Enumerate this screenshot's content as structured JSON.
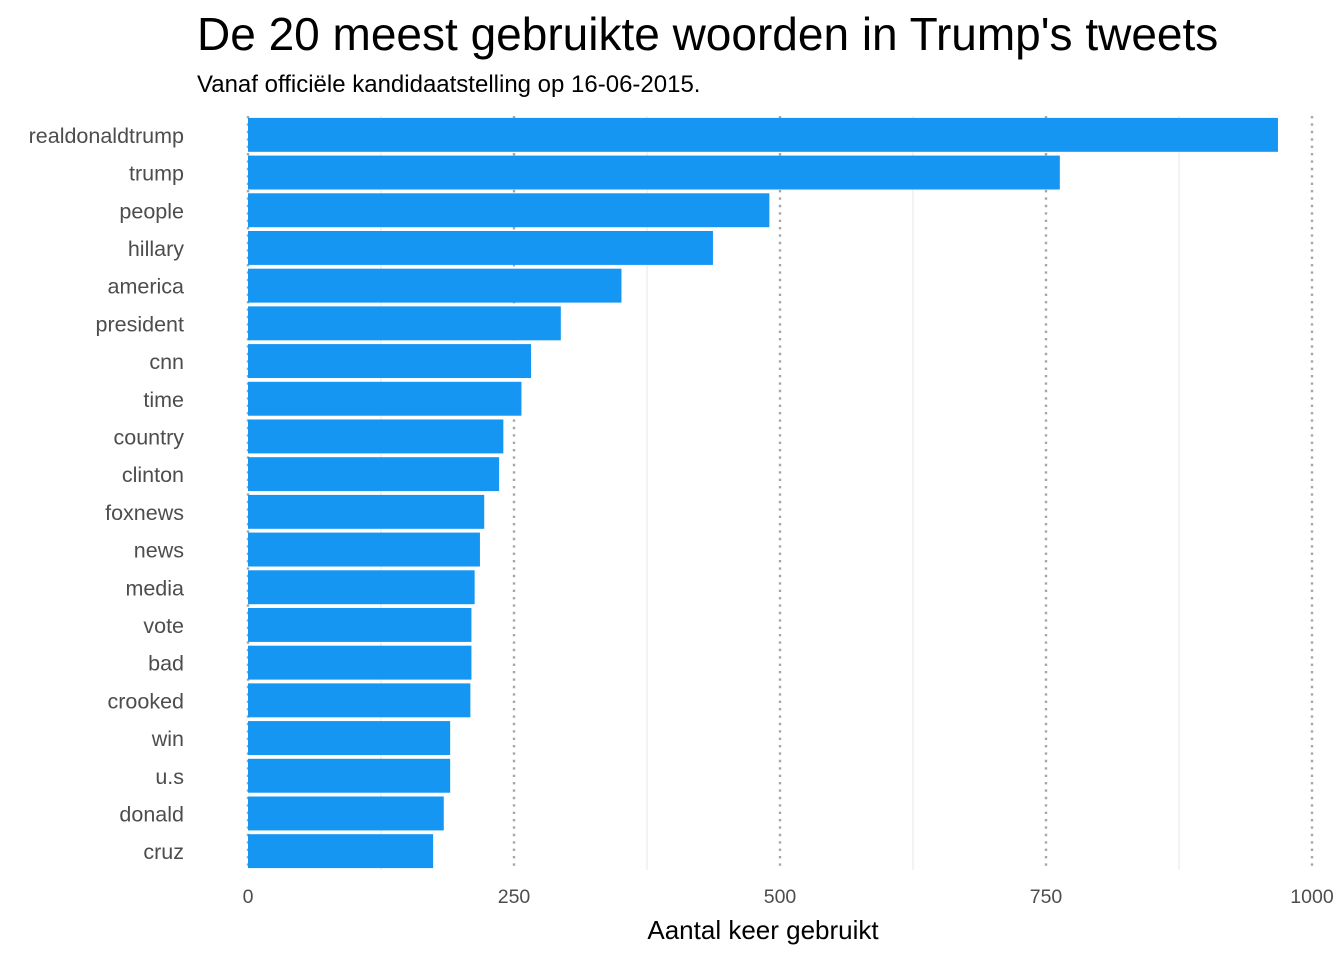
{
  "chart_data": {
    "type": "bar",
    "orientation": "horizontal",
    "title": "De 20 meest gebruikte woorden in Trump's tweets",
    "subtitle": "Vanaf officiële kandidaatstelling op 16-06-2015.",
    "xlabel": "Aantal keer gebruikt",
    "ylabel": "",
    "xlim": [
      0,
      1000
    ],
    "xticks": [
      "0",
      "250",
      "500",
      "750",
      "1000"
    ],
    "xtick_values": [
      0,
      250,
      500,
      750,
      1000
    ],
    "grid": true,
    "bar_color": "#1596f3",
    "categories": [
      "realdonaldtrump",
      "trump",
      "people",
      "hillary",
      "america",
      "president",
      "cnn",
      "time",
      "country",
      "clinton",
      "foxnews",
      "news",
      "media",
      "vote",
      "bad",
      "crooked",
      "win",
      "u.s",
      "donald",
      "cruz"
    ],
    "values": [
      968,
      763,
      490,
      437,
      351,
      294,
      266,
      257,
      240,
      236,
      222,
      218,
      213,
      210,
      210,
      209,
      190,
      190,
      184,
      174
    ]
  }
}
